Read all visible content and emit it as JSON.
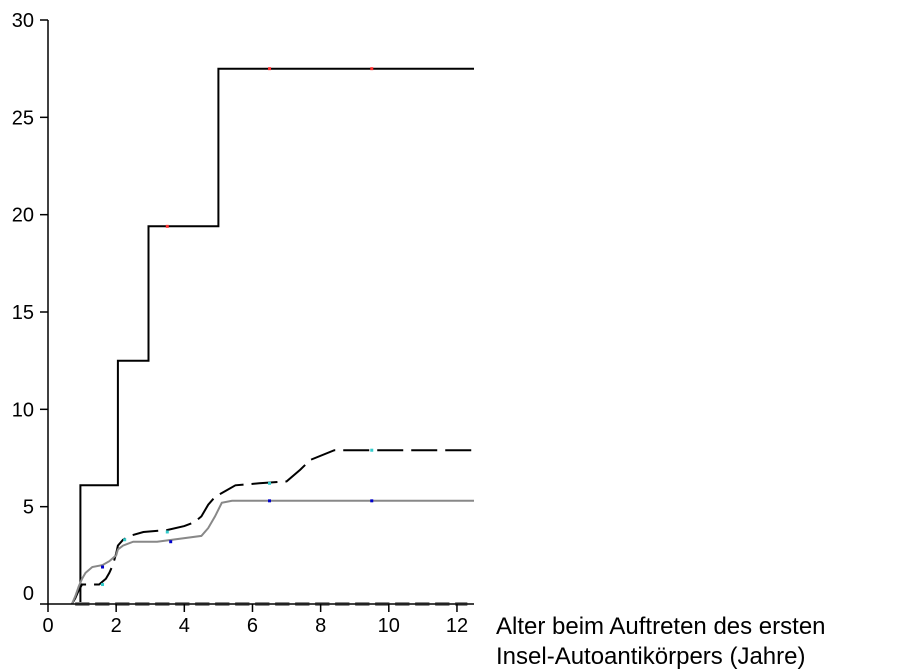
{
  "chart_data": {
    "type": "line",
    "step": true,
    "title": "",
    "xlabel_lines": [
      "Alter beim Auftreten des ersten",
      "Insel-Autoantikörpers (Jahre)"
    ],
    "ylabel": "",
    "xlim": [
      0,
      12.5
    ],
    "ylim": [
      0,
      30
    ],
    "x_ticks": [
      0,
      2,
      4,
      6,
      8,
      10,
      12
    ],
    "y_ticks": [
      0,
      5,
      10,
      15,
      20,
      25,
      30
    ],
    "grid": false,
    "legend": "none",
    "series": [
      {
        "color": "#000000",
        "dash": "solid",
        "width": 2,
        "points": [
          [
            0.95,
            0
          ],
          [
            0.95,
            6.1
          ],
          [
            2.05,
            6.1
          ],
          [
            2.05,
            12.5
          ],
          [
            2.95,
            12.5
          ],
          [
            2.95,
            19.4
          ],
          [
            5.0,
            19.4
          ],
          [
            5.0,
            27.5
          ],
          [
            12.5,
            27.5
          ]
        ],
        "censor_marks": [
          [
            3.5,
            19.4
          ],
          [
            6.5,
            27.5
          ],
          [
            9.5,
            27.5
          ]
        ],
        "censor_color": "#ff3030"
      },
      {
        "color": "#000000",
        "dash": "long-dash",
        "width": 2,
        "points": [
          [
            0.7,
            0
          ],
          [
            0.8,
            0.3
          ],
          [
            0.9,
            0.7
          ],
          [
            1.0,
            1.0
          ],
          [
            1.5,
            1.0
          ],
          [
            1.7,
            1.3
          ],
          [
            1.8,
            1.6
          ],
          [
            1.9,
            2.0
          ],
          [
            2.0,
            2.6
          ],
          [
            2.05,
            3.0
          ],
          [
            2.2,
            3.3
          ],
          [
            2.4,
            3.5
          ],
          [
            2.8,
            3.7
          ],
          [
            3.5,
            3.8
          ],
          [
            4.0,
            4.0
          ],
          [
            4.3,
            4.2
          ],
          [
            4.5,
            4.5
          ],
          [
            4.7,
            5.1
          ],
          [
            4.9,
            5.5
          ],
          [
            5.2,
            5.8
          ],
          [
            5.5,
            6.1
          ],
          [
            6.2,
            6.2
          ],
          [
            7.0,
            6.3
          ],
          [
            7.4,
            6.9
          ],
          [
            7.7,
            7.4
          ],
          [
            8.4,
            7.9
          ],
          [
            12.5,
            7.9
          ]
        ],
        "censor_marks": [
          [
            1.6,
            1.0
          ],
          [
            2.25,
            3.3
          ],
          [
            3.5,
            3.7
          ],
          [
            6.5,
            6.2
          ],
          [
            9.5,
            7.9
          ]
        ],
        "censor_color": "#33cccc"
      },
      {
        "color": "#888888",
        "dash": "solid",
        "width": 2,
        "points": [
          [
            0.7,
            0
          ],
          [
            0.8,
            0.4
          ],
          [
            0.9,
            0.9
          ],
          [
            1.0,
            1.3
          ],
          [
            1.1,
            1.6
          ],
          [
            1.3,
            1.9
          ],
          [
            1.6,
            2.0
          ],
          [
            1.8,
            2.2
          ],
          [
            2.0,
            2.5
          ],
          [
            2.05,
            2.8
          ],
          [
            2.2,
            3.0
          ],
          [
            2.5,
            3.2
          ],
          [
            3.2,
            3.2
          ],
          [
            4.5,
            3.5
          ],
          [
            4.7,
            3.9
          ],
          [
            4.9,
            4.5
          ],
          [
            5.1,
            5.2
          ],
          [
            5.4,
            5.3
          ],
          [
            12.5,
            5.3
          ]
        ],
        "censor_marks": [
          [
            1.6,
            1.9
          ],
          [
            3.6,
            3.2
          ],
          [
            6.5,
            5.3
          ],
          [
            9.5,
            5.3
          ]
        ],
        "censor_color": "#0000cc"
      },
      {
        "color": "#000000",
        "dash": "long-dash",
        "width": 3,
        "points": [
          [
            0.8,
            0
          ],
          [
            12.3,
            0
          ]
        ],
        "censor_marks": [],
        "censor_color": "#000000"
      },
      {
        "color": "#888888",
        "dash": "long-dash",
        "width": 4,
        "points": [
          [
            0.8,
            0
          ],
          [
            12.3,
            0
          ]
        ],
        "censor_marks": [],
        "censor_color": "#888888"
      }
    ]
  }
}
